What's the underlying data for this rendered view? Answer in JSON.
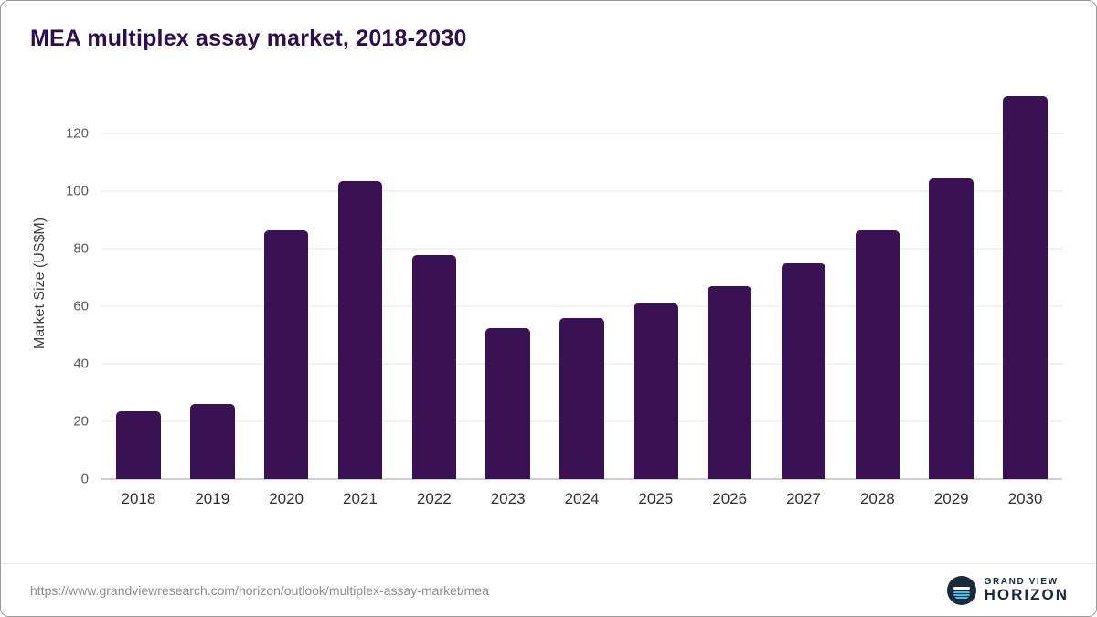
{
  "header": {
    "title": "MEA multiplex assay market, 2018-2030"
  },
  "chart_data": {
    "type": "bar",
    "title": "MEA multiplex assay market, 2018-2030",
    "categories": [
      "2018",
      "2019",
      "2020",
      "2021",
      "2022",
      "2023",
      "2024",
      "2025",
      "2026",
      "2027",
      "2028",
      "2029",
      "2030"
    ],
    "values": [
      23.5,
      26,
      86.5,
      103.5,
      78,
      52.5,
      56,
      61,
      67,
      75,
      86.5,
      104.5,
      133
    ],
    "xlabel": "",
    "ylabel": "Market Size (US$M)",
    "ylim": [
      0,
      136
    ],
    "yticks": [
      0,
      20,
      40,
      60,
      80,
      100,
      120
    ],
    "grid": true,
    "legend": "none",
    "bar_color": "#3a1153"
  },
  "colors": {
    "title_text": "#2c0d4e",
    "bar": "#3a1153",
    "gridline": "#e4e4e4",
    "axis_line": "#9e9e9e",
    "logo_navy": "#1b2a3b",
    "logo_blue": "#45bfe8"
  },
  "footer": {
    "source_url": "https://www.grandviewresearch.com/horizon/outlook/multiplex-assay-market/mea",
    "brand_top": "GRAND VIEW",
    "brand_bottom": "HORIZON"
  }
}
